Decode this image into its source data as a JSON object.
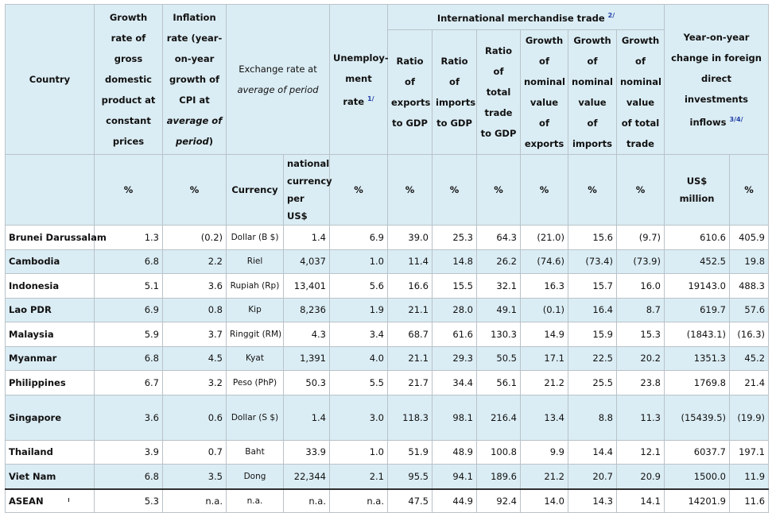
{
  "headers": {
    "country": "Country",
    "gdp": "Growth rate of gross domestic product at constant prices",
    "inflation_pre": "Inflation rate (year-on-year growth of CPI at ",
    "inflation_it": "average of period",
    "inflation_post": ")",
    "exchange_pre": "Exchange rate at ",
    "exchange_it": "average of period",
    "unemployment": "Unemploy-ment rate ",
    "unemployment_fn": "1/",
    "trade": "International merchandise trade ",
    "trade_fn": "2/",
    "exp_gdp": "Ratio of exports to GDP",
    "imp_gdp": "Ratio of imports to GDP",
    "trade_gdp": "Ratio of total trade to GDP",
    "growth_exp": "Growth of nominal value of exports",
    "growth_imp": "Growth of nominal value of imports",
    "growth_trade": "Growth of nominal value of total trade",
    "fdi": "Year-on-year change in foreign direct investments inflows ",
    "fdi_fn": "3/4/",
    "units": {
      "pct": "%",
      "currency": "Currency",
      "nat_cur": "national currency per US$",
      "usd": "US$ million"
    }
  },
  "rows": [
    {
      "country": "Brunei Darussalam",
      "gdp": "1.3",
      "inflation": "(0.2)",
      "currency": "Dollar (B $)",
      "rate": "1.4",
      "unemp": "6.9",
      "exp_gdp": "39.0",
      "imp_gdp": "25.3",
      "trade_gdp": "64.3",
      "g_exp": "(21.0)",
      "g_imp": "15.6",
      "g_trade": "(9.7)",
      "fdi_usd": "610.6",
      "fdi_pct": "405.9"
    },
    {
      "country": "Cambodia",
      "gdp": "6.8",
      "inflation": "2.2",
      "currency": "Riel",
      "rate": "4,037",
      "unemp": "1.0",
      "exp_gdp": "11.4",
      "imp_gdp": "14.8",
      "trade_gdp": "26.2",
      "g_exp": "(74.6)",
      "g_imp": "(73.4)",
      "g_trade": "(73.9)",
      "fdi_usd": "452.5",
      "fdi_pct": "19.8"
    },
    {
      "country": "Indonesia",
      "gdp": "5.1",
      "inflation": "3.6",
      "currency": "Rupiah (Rp)",
      "rate": "13,401",
      "unemp": "5.6",
      "exp_gdp": "16.6",
      "imp_gdp": "15.5",
      "trade_gdp": "32.1",
      "g_exp": "16.3",
      "g_imp": "15.7",
      "g_trade": "16.0",
      "fdi_usd": "19143.0",
      "fdi_pct": "488.3"
    },
    {
      "country": "Lao PDR",
      "gdp": "6.9",
      "inflation": "0.8",
      "currency": "Kip",
      "rate": "8,236",
      "unemp": "1.9",
      "exp_gdp": "21.1",
      "imp_gdp": "28.0",
      "trade_gdp": "49.1",
      "g_exp": "(0.1)",
      "g_imp": "16.4",
      "g_trade": "8.7",
      "fdi_usd": "619.7",
      "fdi_pct": "57.6"
    },
    {
      "country": "Malaysia",
      "gdp": "5.9",
      "inflation": "3.7",
      "currency": "Ringgit (RM)",
      "rate": "4.3",
      "unemp": "3.4",
      "exp_gdp": "68.7",
      "imp_gdp": "61.6",
      "trade_gdp": "130.3",
      "g_exp": "14.9",
      "g_imp": "15.9",
      "g_trade": "15.3",
      "fdi_usd": "(1843.1)",
      "fdi_pct": "(16.3)"
    },
    {
      "country": "Myanmar",
      "gdp": "6.8",
      "inflation": "4.5",
      "currency": "Kyat",
      "rate": "1,391",
      "unemp": "4.0",
      "exp_gdp": "21.1",
      "imp_gdp": "29.3",
      "trade_gdp": "50.5",
      "g_exp": "17.1",
      "g_imp": "22.5",
      "g_trade": "20.2",
      "fdi_usd": "1351.3",
      "fdi_pct": "45.2"
    },
    {
      "country": "Philippines",
      "gdp": "6.7",
      "inflation": "3.2",
      "currency": "Peso (PhP)",
      "rate": "50.3",
      "unemp": "5.5",
      "exp_gdp": "21.7",
      "imp_gdp": "34.4",
      "trade_gdp": "56.1",
      "g_exp": "21.2",
      "g_imp": "25.5",
      "g_trade": "23.8",
      "fdi_usd": "1769.8",
      "fdi_pct": "21.4"
    },
    {
      "country": "Singapore",
      "gdp": "3.6",
      "inflation": "0.6",
      "currency": "Dollar (S $)",
      "rate": "1.4",
      "unemp": "3.0",
      "exp_gdp": "118.3",
      "imp_gdp": "98.1",
      "trade_gdp": "216.4",
      "g_exp": "13.4",
      "g_imp": "8.8",
      "g_trade": "11.3",
      "fdi_usd": "(15439.5)",
      "fdi_pct": "(19.9)"
    },
    {
      "country": "Thailand",
      "gdp": "3.9",
      "inflation": "0.7",
      "currency": "Baht",
      "rate": "33.9",
      "unemp": "1.0",
      "exp_gdp": "51.9",
      "imp_gdp": "48.9",
      "trade_gdp": "100.8",
      "g_exp": "9.9",
      "g_imp": "14.4",
      "g_trade": "12.1",
      "fdi_usd": "6037.7",
      "fdi_pct": "197.1"
    },
    {
      "country": "Viet Nam",
      "gdp": "6.8",
      "inflation": "3.5",
      "currency": "Dong",
      "rate": "22,344",
      "unemp": "2.1",
      "exp_gdp": "95.5",
      "imp_gdp": "94.1",
      "trade_gdp": "189.6",
      "g_exp": "21.2",
      "g_imp": "20.7",
      "g_trade": "20.9",
      "fdi_usd": "1500.0",
      "fdi_pct": "11.9"
    }
  ],
  "asean": {
    "country": "ASEAN",
    "gdp": "5.3",
    "inflation": "n.a.",
    "currency": "n.a.",
    "rate": "n.a.",
    "unemp": "n.a.",
    "exp_gdp": "47.5",
    "imp_gdp": "44.9",
    "trade_gdp": "92.4",
    "g_exp": "14.0",
    "g_imp": "14.3",
    "g_trade": "14.1",
    "fdi_usd": "14201.9",
    "fdi_pct": "11.6"
  }
}
